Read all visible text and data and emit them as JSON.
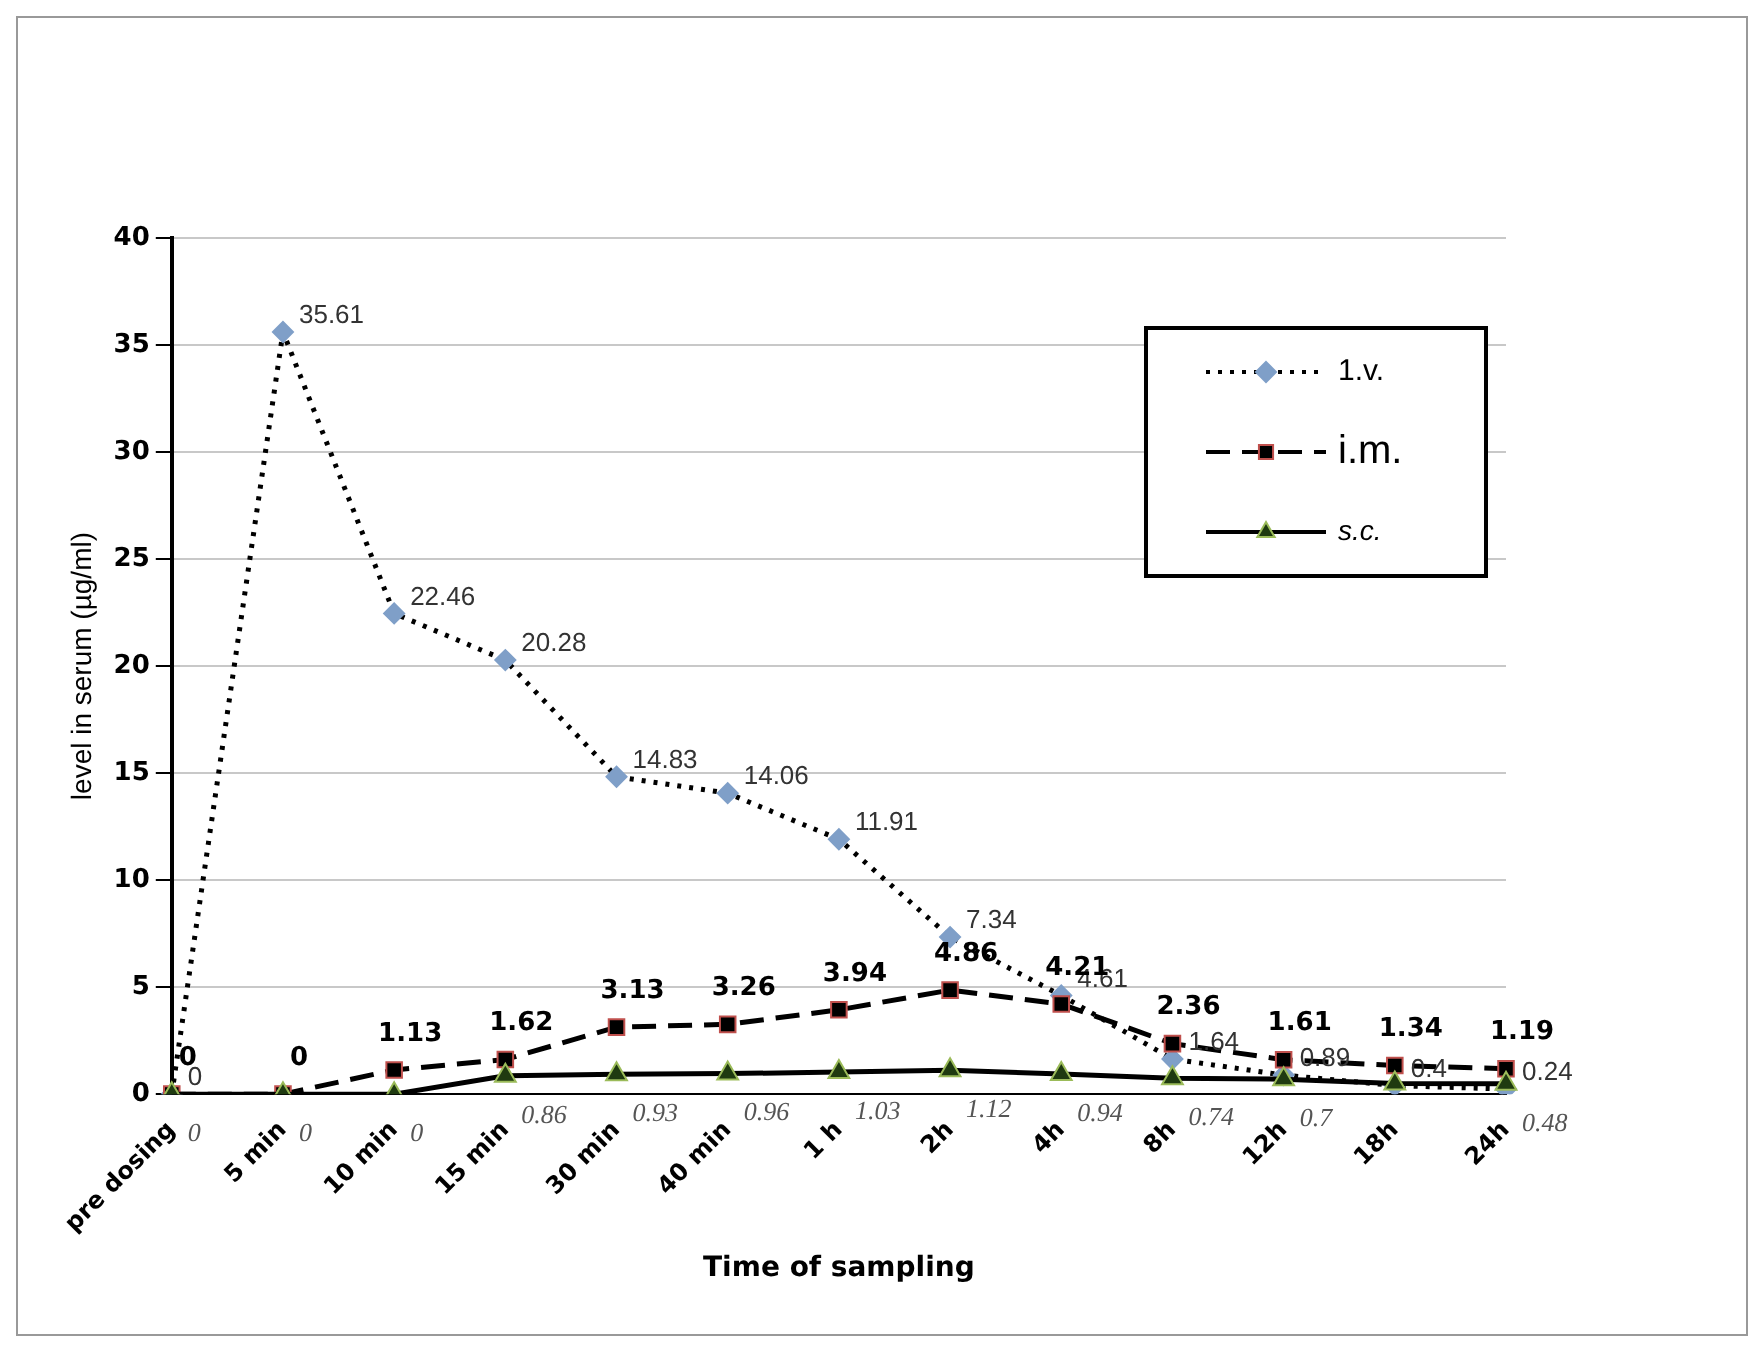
{
  "chart_data": {
    "type": "line",
    "xlabel": "Time of sampling",
    "ylabel": "level in serum (µg/ml)",
    "categories": [
      "pre dosing",
      "5 min",
      "10 min",
      "15 min",
      "30 min",
      "40 min",
      "1 h",
      "2h",
      "4h",
      "8h",
      "12h",
      "18h",
      "24h"
    ],
    "series": [
      {
        "name": "1.v.",
        "color": "#7f9fc8",
        "marker": "diamond",
        "line_style": "dotted",
        "values": [
          0,
          35.61,
          22.46,
          20.28,
          14.83,
          14.06,
          11.91,
          7.34,
          4.61,
          1.64,
          0.89,
          0.4,
          0.24
        ],
        "value_labels": [
          "0",
          "35.61",
          "22.46",
          "20.28",
          "14.83",
          "14.06",
          "11.91",
          "7.34",
          "4.61",
          "1.64",
          "0.89",
          "0.4",
          "0.24"
        ]
      },
      {
        "name": "i.m.",
        "color": "#000000",
        "marker": "square",
        "line_style": "dashed",
        "values": [
          0,
          0,
          1.13,
          1.62,
          3.13,
          3.26,
          3.94,
          4.86,
          4.21,
          2.36,
          1.61,
          1.34,
          1.19
        ],
        "value_labels": [
          "0",
          "0",
          "1.13",
          "1.62",
          "3.13",
          "3.26",
          "3.94",
          "4.86",
          "4.21",
          "2.36",
          "1.61",
          "1.34",
          "1.19"
        ]
      },
      {
        "name": "s.c.",
        "color": "#1f3a10",
        "marker": "triangle",
        "line_style": "solid",
        "values": [
          0,
          0,
          0,
          0.86,
          0.93,
          0.96,
          1.03,
          1.12,
          0.94,
          0.74,
          0.7,
          0.5,
          0.48
        ],
        "value_labels": [
          "0",
          "0",
          "0",
          "0.86",
          "0.93",
          "0.96",
          "1.03",
          "1.12",
          "0.94",
          "0.74",
          "0.7",
          null,
          "0.48"
        ]
      }
    ],
    "ylim": [
      0,
      40
    ],
    "yticks": [
      0,
      5,
      10,
      15,
      20,
      25,
      30,
      35,
      40
    ],
    "grid": "y",
    "legend": "top right"
  }
}
